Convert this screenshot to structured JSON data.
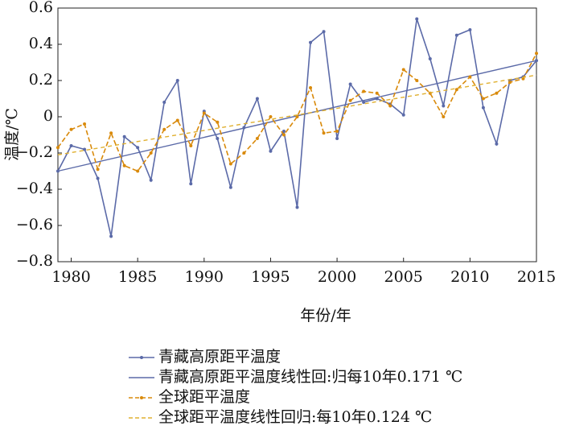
{
  "chart_data": {
    "type": "line",
    "ylabel": "温度/℃",
    "xlabel": "年份/年",
    "x": [
      1979,
      1980,
      1981,
      1982,
      1983,
      1984,
      1985,
      1986,
      1987,
      1988,
      1989,
      1990,
      1991,
      1992,
      1993,
      1994,
      1995,
      1996,
      1997,
      1998,
      1999,
      2000,
      2001,
      2002,
      2003,
      2004,
      2005,
      2006,
      2007,
      2008,
      2009,
      2010,
      2011,
      2012,
      2013,
      2014,
      2015
    ],
    "series": [
      {
        "name": "青藏高原距平温度",
        "color": "#5b6aa8",
        "style": "solid-markers",
        "values": [
          -0.3,
          -0.16,
          -0.18,
          -0.34,
          -0.66,
          -0.11,
          -0.17,
          -0.35,
          0.08,
          0.2,
          -0.37,
          0.03,
          -0.12,
          -0.39,
          -0.06,
          0.1,
          -0.19,
          -0.08,
          -0.5,
          0.41,
          0.47,
          -0.12,
          0.18,
          0.08,
          0.1,
          0.07,
          0.01,
          0.54,
          0.32,
          0.06,
          0.45,
          0.48,
          0.05,
          -0.15,
          0.2,
          0.22,
          0.31
        ]
      },
      {
        "name": "青藏高原距平温度线性回:归每10年0.171 ℃",
        "color": "#5b6aa8",
        "style": "solid",
        "x": [
          1979,
          2015
        ],
        "values": [
          -0.3,
          0.31
        ]
      },
      {
        "name": "全球距平温度",
        "color": "#d98a0b",
        "style": "dashed-markers",
        "values": [
          -0.17,
          -0.07,
          -0.04,
          -0.29,
          -0.09,
          -0.27,
          -0.3,
          -0.2,
          -0.07,
          -0.02,
          -0.16,
          0.02,
          -0.03,
          -0.26,
          -0.2,
          -0.12,
          0.0,
          -0.1,
          0.0,
          0.16,
          -0.09,
          -0.08,
          0.09,
          0.14,
          0.13,
          0.06,
          0.26,
          0.2,
          0.13,
          0.0,
          0.15,
          0.22,
          0.1,
          0.13,
          0.19,
          0.21,
          0.35
        ]
      },
      {
        "name": "全球距平温度线性回归:每10年0.124 ℃",
        "color": "#e0b030",
        "style": "dashed",
        "x": [
          1979,
          2015
        ],
        "values": [
          -0.21,
          0.23
        ]
      }
    ],
    "xlim": [
      1979,
      2015
    ],
    "xticks": [
      1980,
      1985,
      1990,
      1995,
      2000,
      2005,
      2010,
      2015
    ],
    "ylim": [
      -0.8,
      0.6
    ],
    "yticks": [
      {
        "value": -0.8,
        "label": "−0.8"
      },
      {
        "value": -0.6,
        "label": "−0.6"
      },
      {
        "value": -0.4,
        "label": "−0.4"
      },
      {
        "value": -0.2,
        "label": "−0.2"
      },
      0,
      0.2,
      0.4,
      0.6
    ],
    "grid": false
  }
}
